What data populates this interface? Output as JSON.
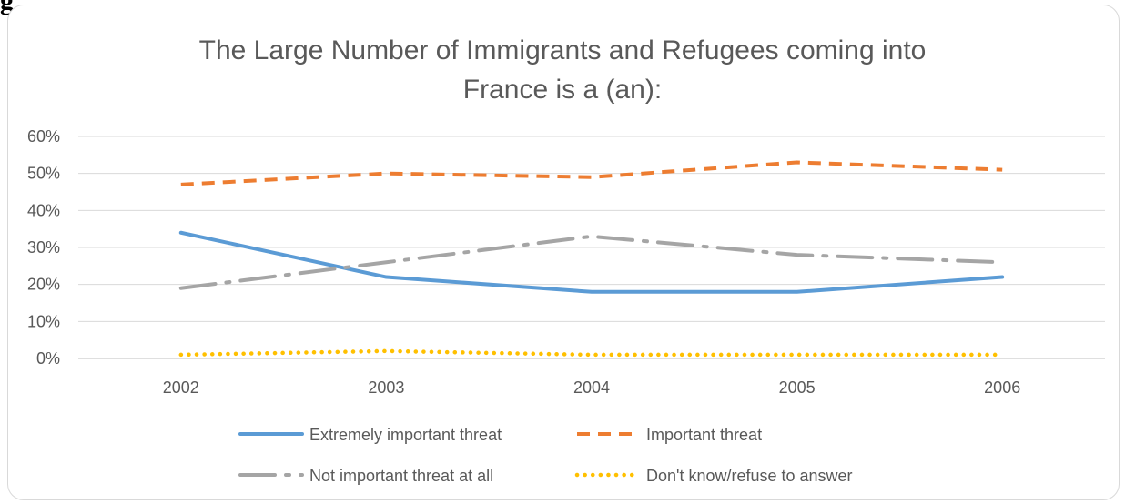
{
  "figure_label": "g",
  "chart_data": {
    "type": "line",
    "title_lines": [
      "The Large Number of Immigrants and Refugees coming into",
      "France is a (an):"
    ],
    "categories": [
      "2002",
      "2003",
      "2004",
      "2005",
      "2006"
    ],
    "y_ticks": [
      "0%",
      "10%",
      "20%",
      "30%",
      "40%",
      "50%",
      "60%"
    ],
    "ylim": [
      0,
      60
    ],
    "grid": true,
    "legend_position": "bottom",
    "series": [
      {
        "name": "Extremely important threat",
        "values": [
          34,
          22,
          18,
          18,
          22
        ],
        "color": "#5b9bd5",
        "style": "solid"
      },
      {
        "name": "Important threat",
        "values": [
          47,
          50,
          49,
          53,
          51
        ],
        "color": "#ed7d31",
        "style": "dash"
      },
      {
        "name": "Not important threat at all",
        "values": [
          19,
          26,
          33,
          28,
          26
        ],
        "color": "#a5a5a5",
        "style": "longdashdot"
      },
      {
        "name": "Don't know/refuse to answer",
        "values": [
          1,
          2,
          1,
          1,
          1
        ],
        "color": "#ffc000",
        "style": "dot"
      }
    ]
  }
}
